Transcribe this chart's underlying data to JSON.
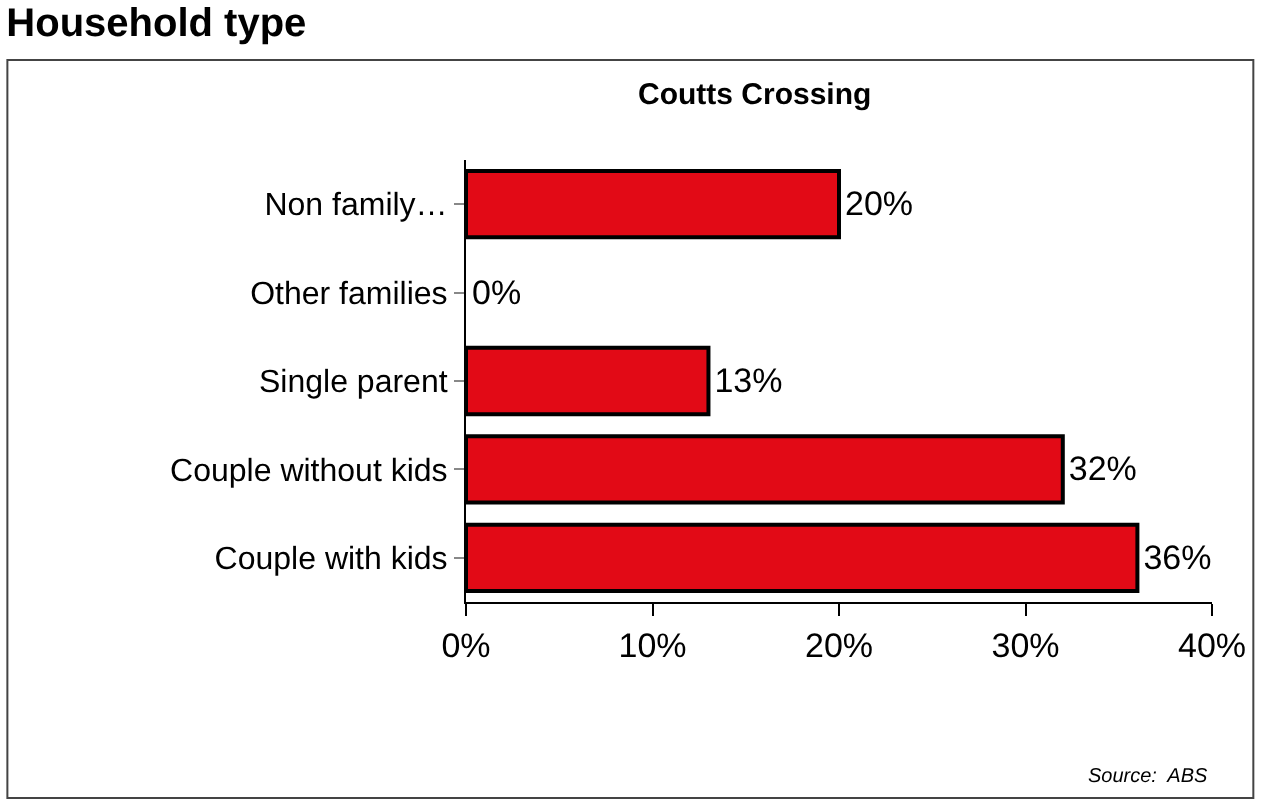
{
  "chart_data": {
    "type": "bar",
    "orientation": "horizontal",
    "title": "Household type",
    "subtitle": "Coutts Crossing",
    "categories": [
      "Non family…",
      "Other families",
      "Single parent",
      "Couple without kids",
      "Couple with kids"
    ],
    "values": [
      20,
      0,
      13,
      32,
      36
    ],
    "color": "#e20a16",
    "value_labels": [
      "20%",
      "0%",
      "13%",
      "32%",
      "36%"
    ],
    "xlim": [
      0,
      40
    ],
    "xticks": [
      {
        "value": 0,
        "label": "0%"
      },
      {
        "value": 10,
        "label": "10%"
      },
      {
        "value": 20,
        "label": "20%"
      },
      {
        "value": 30,
        "label": "30%"
      },
      {
        "value": 40,
        "label": "40%"
      }
    ],
    "annotations": [
      "Source:  ABS"
    ]
  }
}
